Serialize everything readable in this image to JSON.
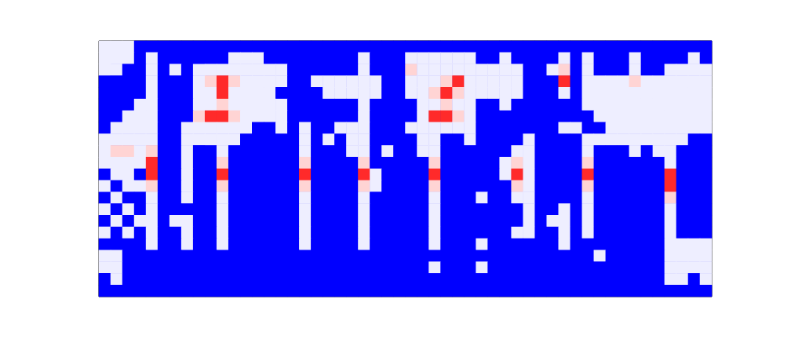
{
  "chart_data": {
    "type": "heatmap",
    "tick_labels": false,
    "color_range": [
      0,
      3
    ],
    "cells": [
      [
        1,
        1,
        1,
        0,
        0,
        0,
        0,
        0,
        0,
        0,
        0,
        0,
        0,
        0,
        0,
        0,
        0,
        0,
        0,
        0,
        0,
        0,
        0,
        0,
        0,
        0,
        0,
        0,
        0,
        0,
        0,
        0,
        0,
        0,
        0,
        0,
        0,
        0,
        0,
        0,
        0,
        0,
        0,
        0,
        0,
        0,
        0,
        0,
        0,
        0,
        0,
        0
      ],
      [
        1,
        1,
        1,
        0,
        1,
        0,
        0,
        0,
        0,
        0,
        0,
        1,
        1,
        1,
        0,
        0,
        0,
        0,
        0,
        0,
        0,
        0,
        1,
        0,
        0,
        0,
        1,
        1,
        1,
        1,
        1,
        1,
        0,
        0,
        1,
        0,
        0,
        0,
        0,
        1,
        0,
        1,
        0,
        0,
        0,
        1,
        0,
        0,
        0,
        0,
        1,
        0
      ],
      [
        1,
        1,
        0,
        0,
        1,
        0,
        1,
        0,
        1,
        1,
        1,
        1,
        1,
        1,
        1,
        1,
        0,
        0,
        0,
        0,
        0,
        0,
        1,
        0,
        0,
        0,
        2,
        1,
        1,
        1,
        1,
        1,
        1,
        1,
        1,
        1,
        0,
        0,
        1,
        2,
        0,
        1,
        0,
        0,
        0,
        1,
        0,
        0,
        1,
        1,
        1,
        1
      ],
      [
        0,
        0,
        0,
        0,
        1,
        0,
        0,
        0,
        1,
        2,
        3,
        2,
        1,
        1,
        1,
        1,
        0,
        0,
        1,
        1,
        1,
        1,
        1,
        1,
        0,
        0,
        1,
        1,
        1,
        2,
        3,
        1,
        1,
        1,
        1,
        1,
        0,
        0,
        0,
        3,
        0,
        1,
        1,
        1,
        1,
        2,
        1,
        1,
        1,
        1,
        1,
        1
      ],
      [
        0,
        0,
        0,
        0,
        1,
        0,
        0,
        0,
        1,
        1,
        3,
        1,
        1,
        1,
        1,
        0,
        0,
        0,
        0,
        1,
        1,
        1,
        1,
        1,
        0,
        0,
        1,
        1,
        2,
        3,
        2,
        1,
        1,
        1,
        1,
        1,
        0,
        0,
        0,
        1,
        0,
        1,
        1,
        1,
        1,
        1,
        1,
        1,
        1,
        1,
        1,
        1
      ],
      [
        0,
        0,
        0,
        1,
        1,
        0,
        0,
        0,
        1,
        1,
        2,
        1,
        1,
        1,
        1,
        1,
        0,
        0,
        0,
        0,
        0,
        0,
        1,
        0,
        0,
        0,
        0,
        1,
        1,
        2,
        1,
        1,
        0,
        0,
        1,
        0,
        0,
        0,
        0,
        0,
        0,
        1,
        1,
        1,
        1,
        1,
        1,
        1,
        1,
        1,
        1,
        1
      ],
      [
        0,
        0,
        1,
        1,
        1,
        0,
        0,
        0,
        2,
        3,
        3,
        2,
        1,
        1,
        1,
        1,
        0,
        0,
        0,
        0,
        0,
        0,
        1,
        0,
        0,
        0,
        0,
        1,
        3,
        3,
        2,
        1,
        0,
        0,
        0,
        0,
        0,
        0,
        0,
        0,
        0,
        0,
        1,
        1,
        1,
        1,
        1,
        1,
        1,
        1,
        1,
        1
      ],
      [
        0,
        1,
        1,
        1,
        1,
        0,
        0,
        1,
        1,
        1,
        1,
        1,
        1,
        0,
        0,
        1,
        0,
        1,
        0,
        0,
        1,
        1,
        1,
        0,
        0,
        0,
        1,
        1,
        1,
        1,
        1,
        1,
        0,
        0,
        0,
        0,
        0,
        0,
        0,
        1,
        1,
        0,
        0,
        1,
        1,
        1,
        1,
        1,
        1,
        1,
        1,
        1
      ],
      [
        1,
        1,
        1,
        1,
        1,
        0,
        0,
        1,
        1,
        1,
        1,
        1,
        0,
        0,
        0,
        0,
        0,
        1,
        0,
        1,
        0,
        1,
        1,
        0,
        0,
        0,
        0,
        1,
        1,
        0,
        0,
        1,
        0,
        0,
        0,
        0,
        1,
        0,
        0,
        0,
        0,
        1,
        1,
        1,
        1,
        1,
        1,
        1,
        1,
        1,
        0,
        0
      ],
      [
        1,
        2,
        2,
        1,
        2,
        0,
        0,
        1,
        0,
        0,
        1,
        0,
        0,
        0,
        0,
        0,
        0,
        1,
        0,
        0,
        0,
        1,
        1,
        0,
        1,
        0,
        0,
        1,
        1,
        0,
        0,
        0,
        0,
        0,
        0,
        1,
        1,
        0,
        0,
        0,
        0,
        1,
        0,
        0,
        0,
        1,
        0,
        1,
        1,
        0,
        0,
        0
      ],
      [
        1,
        1,
        1,
        1,
        3,
        0,
        0,
        1,
        0,
        0,
        2,
        0,
        0,
        0,
        0,
        0,
        0,
        2,
        0,
        0,
        0,
        0,
        2,
        0,
        0,
        0,
        0,
        0,
        2,
        0,
        0,
        0,
        0,
        0,
        1,
        2,
        1,
        0,
        0,
        0,
        0,
        2,
        0,
        0,
        0,
        0,
        0,
        0,
        1,
        0,
        0,
        0
      ],
      [
        0,
        1,
        1,
        0,
        3,
        0,
        0,
        1,
        0,
        0,
        3,
        0,
        0,
        0,
        0,
        0,
        0,
        3,
        0,
        0,
        0,
        0,
        3,
        1,
        0,
        0,
        0,
        0,
        3,
        0,
        0,
        0,
        0,
        0,
        1,
        3,
        1,
        0,
        0,
        0,
        0,
        3,
        0,
        0,
        0,
        0,
        0,
        0,
        3,
        0,
        0,
        0
      ],
      [
        1,
        0,
        1,
        1,
        2,
        0,
        0,
        1,
        0,
        0,
        2,
        0,
        0,
        0,
        0,
        0,
        0,
        2,
        0,
        0,
        0,
        0,
        2,
        1,
        0,
        0,
        0,
        0,
        2,
        0,
        0,
        0,
        0,
        0,
        0,
        2,
        1,
        0,
        0,
        0,
        0,
        2,
        0,
        0,
        0,
        0,
        0,
        0,
        3,
        0,
        0,
        0
      ],
      [
        0,
        1,
        0,
        0,
        1,
        0,
        0,
        1,
        0,
        0,
        1,
        0,
        0,
        0,
        0,
        0,
        0,
        1,
        0,
        0,
        0,
        0,
        1,
        0,
        0,
        0,
        0,
        0,
        1,
        0,
        0,
        0,
        1,
        0,
        0,
        1,
        1,
        0,
        0,
        0,
        0,
        1,
        0,
        0,
        0,
        0,
        0,
        0,
        2,
        0,
        0,
        0
      ],
      [
        1,
        0,
        1,
        0,
        1,
        0,
        0,
        0,
        0,
        0,
        1,
        0,
        0,
        0,
        0,
        0,
        0,
        1,
        0,
        0,
        0,
        0,
        1,
        0,
        0,
        0,
        0,
        0,
        1,
        0,
        0,
        0,
        0,
        0,
        0,
        0,
        1,
        0,
        0,
        1,
        0,
        1,
        0,
        0,
        0,
        0,
        0,
        0,
        1,
        0,
        0,
        0
      ],
      [
        0,
        1,
        0,
        1,
        1,
        0,
        1,
        1,
        0,
        0,
        1,
        0,
        0,
        0,
        0,
        0,
        0,
        1,
        0,
        0,
        0,
        0,
        1,
        0,
        0,
        0,
        0,
        0,
        1,
        0,
        0,
        0,
        0,
        0,
        0,
        0,
        1,
        0,
        1,
        1,
        0,
        1,
        0,
        0,
        0,
        0,
        0,
        0,
        1,
        0,
        0,
        0
      ],
      [
        1,
        0,
        1,
        0,
        1,
        0,
        0,
        1,
        0,
        0,
        1,
        0,
        0,
        0,
        0,
        0,
        0,
        1,
        0,
        0,
        0,
        0,
        1,
        0,
        0,
        0,
        0,
        0,
        1,
        0,
        0,
        0,
        0,
        0,
        0,
        1,
        1,
        0,
        0,
        1,
        0,
        1,
        0,
        0,
        0,
        0,
        0,
        0,
        1,
        0,
        0,
        0
      ],
      [
        0,
        0,
        0,
        0,
        1,
        0,
        0,
        1,
        0,
        0,
        1,
        0,
        0,
        0,
        0,
        0,
        0,
        1,
        0,
        0,
        0,
        0,
        1,
        0,
        0,
        0,
        0,
        0,
        1,
        0,
        0,
        0,
        1,
        0,
        0,
        0,
        0,
        0,
        0,
        1,
        0,
        0,
        0,
        0,
        0,
        0,
        0,
        0,
        1,
        1,
        1,
        1
      ],
      [
        1,
        1,
        0,
        0,
        0,
        0,
        0,
        0,
        0,
        0,
        0,
        0,
        0,
        0,
        0,
        0,
        0,
        0,
        0,
        0,
        0,
        0,
        0,
        0,
        0,
        0,
        0,
        0,
        0,
        0,
        0,
        0,
        0,
        0,
        0,
        0,
        0,
        0,
        0,
        0,
        0,
        0,
        1,
        0,
        0,
        0,
        0,
        0,
        1,
        1,
        1,
        1
      ],
      [
        1,
        1,
        0,
        0,
        0,
        0,
        0,
        0,
        0,
        0,
        0,
        0,
        0,
        0,
        0,
        0,
        0,
        0,
        0,
        0,
        0,
        0,
        0,
        0,
        0,
        0,
        0,
        0,
        1,
        0,
        0,
        0,
        1,
        0,
        0,
        0,
        0,
        0,
        0,
        0,
        0,
        0,
        0,
        0,
        0,
        0,
        0,
        0,
        1,
        1,
        1,
        1
      ],
      [
        0,
        1,
        0,
        0,
        0,
        0,
        0,
        0,
        0,
        0,
        0,
        0,
        0,
        0,
        0,
        0,
        0,
        0,
        0,
        0,
        0,
        0,
        0,
        0,
        0,
        0,
        0,
        0,
        0,
        0,
        0,
        0,
        0,
        0,
        0,
        0,
        0,
        0,
        0,
        0,
        0,
        0,
        0,
        0,
        0,
        0,
        0,
        0,
        1,
        1,
        0,
        1
      ],
      [
        0,
        0,
        0,
        0,
        0,
        0,
        0,
        0,
        0,
        0,
        0,
        0,
        0,
        0,
        0,
        0,
        0,
        0,
        0,
        0,
        0,
        0,
        0,
        0,
        0,
        0,
        0,
        0,
        0,
        0,
        0,
        0,
        0,
        0,
        0,
        0,
        0,
        0,
        0,
        0,
        0,
        0,
        0,
        0,
        0,
        0,
        0,
        0,
        0,
        0,
        0,
        0
      ]
    ]
  }
}
